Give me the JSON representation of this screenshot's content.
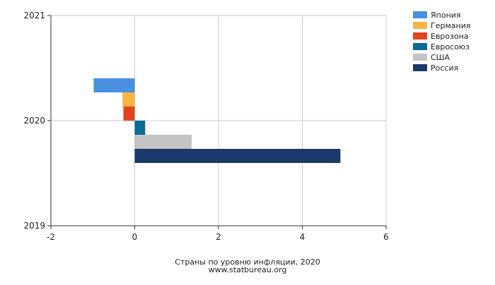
{
  "chart_data": {
    "type": "bar",
    "orientation": "horizontal",
    "title": "",
    "caption": [
      "Страны по уровню инфляции, 2020",
      "www.statbureau.org"
    ],
    "xlabel": "",
    "ylabel": "",
    "xlim": [
      -2,
      6
    ],
    "ylim": [
      2019,
      2021
    ],
    "x_ticks": [
      "-2",
      "0",
      "2",
      "4",
      "6"
    ],
    "y_ticks": [
      "2019",
      "2020",
      "2021"
    ],
    "grid": true,
    "legend_position": "top-right",
    "category": "2020",
    "series": [
      {
        "name": "Япония",
        "value": -0.98,
        "color": "#4A90E2"
      },
      {
        "name": "Германия",
        "value": -0.29,
        "color": "#F8B444"
      },
      {
        "name": "Еврозона",
        "value": -0.27,
        "color": "#E0431E"
      },
      {
        "name": "Евросоюз",
        "value": 0.25,
        "color": "#0E6A96"
      },
      {
        "name": "США",
        "value": 1.36,
        "color": "#C4C4C4"
      },
      {
        "name": "Россия",
        "value": 4.91,
        "color": "#1B3A6B"
      }
    ]
  }
}
